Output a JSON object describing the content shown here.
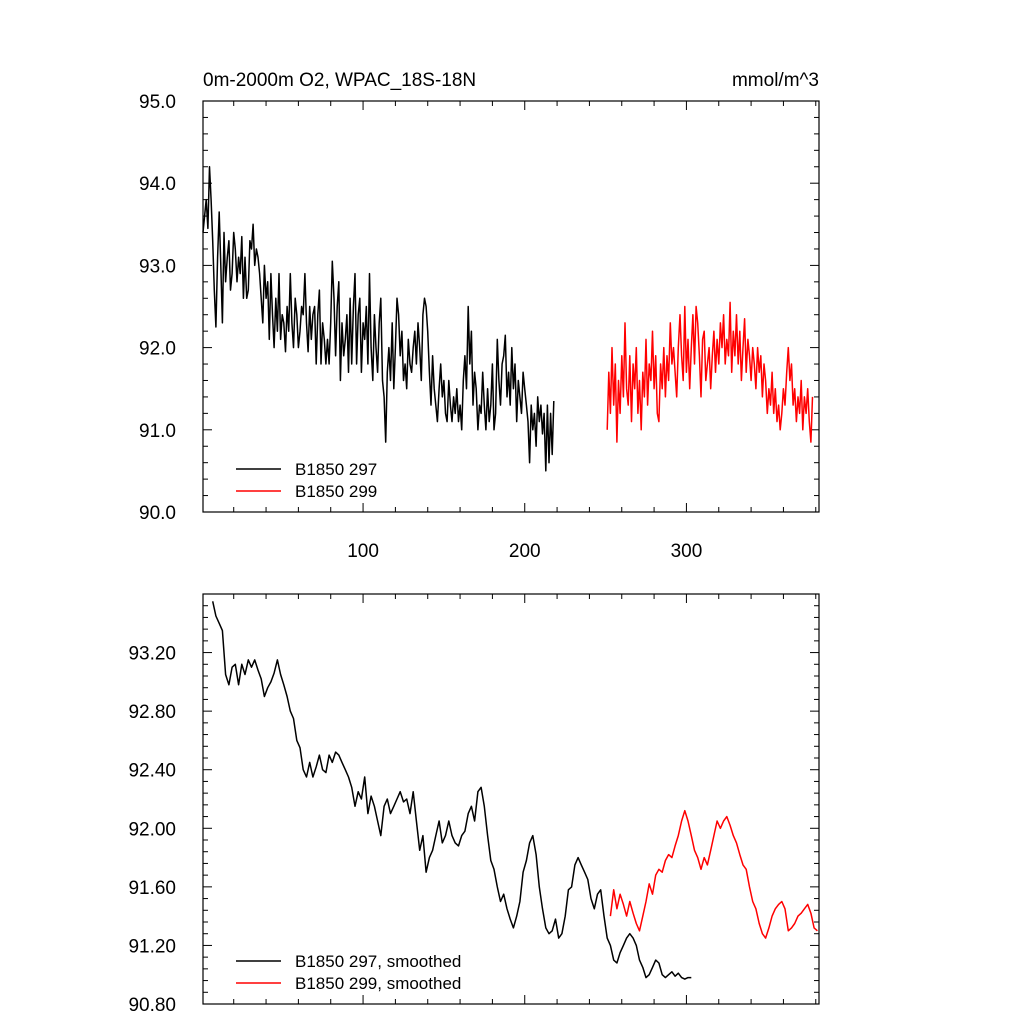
{
  "chart_data": [
    {
      "type": "line",
      "title": "0m-2000m O2, WPAC_18S-18N",
      "units": "mmol/m^3",
      "xlabel": "",
      "ylabel": "",
      "xlim": [
        1,
        382
      ],
      "ylim": [
        90.0,
        95.0
      ],
      "x_ticks": [
        100,
        200,
        300
      ],
      "x_tick_labels": [
        "100",
        "200",
        "300"
      ],
      "y_ticks": [
        90.0,
        91.0,
        92.0,
        93.0,
        94.0,
        95.0
      ],
      "y_tick_labels": [
        "90.0",
        "91.0",
        "92.0",
        "93.0",
        "94.0",
        "95.0"
      ],
      "grid": false,
      "legend_position": "bottom-left",
      "series": [
        {
          "name": "B1850 297",
          "color": "#000000",
          "x_start": 1,
          "values": [
            93.4,
            93.6,
            93.8,
            93.45,
            94.2,
            93.8,
            93.3,
            92.7,
            92.25,
            93.1,
            93.65,
            93.0,
            92.3,
            93.4,
            92.8,
            93.1,
            93.3,
            92.7,
            92.9,
            93.4,
            93.2,
            92.8,
            93.1,
            92.9,
            93.35,
            92.6,
            93.1,
            92.6,
            92.7,
            93.3,
            93.2,
            93.5,
            93.0,
            93.2,
            93.1,
            92.9,
            92.6,
            92.3,
            93.0,
            92.6,
            92.8,
            92.1,
            92.9,
            92.4,
            92.0,
            92.6,
            92.2,
            92.9,
            92.1,
            92.4,
            92.3,
            91.95,
            92.5,
            92.2,
            92.9,
            92.3,
            92.0,
            92.6,
            92.4,
            92.0,
            92.2,
            92.5,
            92.4,
            92.9,
            92.3,
            91.95,
            92.5,
            92.1,
            92.4,
            92.5,
            91.8,
            92.4,
            92.7,
            91.8,
            92.3,
            92.1,
            91.8,
            92.1,
            91.8,
            92.3,
            93.05,
            92.6,
            91.9,
            92.5,
            92.8,
            91.6,
            92.3,
            91.9,
            92.1,
            92.4,
            91.7,
            92.6,
            91.8,
            92.5,
            92.9,
            91.8,
            92.4,
            92.6,
            91.7,
            92.3,
            92.1,
            92.5,
            91.8,
            92.9,
            92.0,
            91.6,
            92.4,
            92.0,
            91.7,
            92.3,
            92.6,
            91.6,
            91.4,
            90.85,
            91.7,
            92.0,
            91.6,
            92.3,
            91.5,
            92.0,
            92.6,
            92.4,
            91.9,
            92.2,
            91.6,
            91.8,
            91.5,
            92.1,
            91.8,
            91.7,
            92.0,
            92.2,
            91.8,
            92.3,
            92.0,
            91.6,
            92.4,
            92.6,
            92.5,
            92.2,
            91.7,
            91.3,
            91.9,
            91.5,
            91.3,
            91.1,
            91.5,
            91.8,
            91.4,
            91.6,
            91.2,
            91.1,
            91.6,
            91.3,
            91.1,
            91.4,
            91.2,
            91.5,
            91.1,
            91.3,
            91.0,
            91.6,
            91.9,
            91.5,
            92.5,
            91.8,
            92.2,
            91.3,
            91.7,
            91.5,
            91.0,
            91.3,
            91.2,
            91.7,
            91.3,
            91.0,
            91.5,
            91.1,
            91.3,
            91.8,
            91.0,
            91.2,
            92.1,
            91.6,
            91.3,
            91.8,
            91.9,
            92.15,
            91.4,
            91.7,
            91.3,
            92.0,
            91.5,
            91.8,
            91.1,
            91.6,
            91.4,
            91.2,
            91.7,
            91.5,
            91.3,
            91.1,
            90.6,
            91.3,
            91.0,
            91.2,
            90.8,
            91.4,
            91.1,
            91.3,
            90.95,
            91.2,
            90.5,
            91.3,
            90.6,
            91.2,
            90.7,
            91.35
          ]
        },
        {
          "name": "B1850 299",
          "color": "#ff0000",
          "x_start": 251,
          "values": [
            91.0,
            91.7,
            91.2,
            92.0,
            91.3,
            91.8,
            90.85,
            91.6,
            91.2,
            91.9,
            91.4,
            92.3,
            91.5,
            91.3,
            91.9,
            91.1,
            91.8,
            91.5,
            92.0,
            91.2,
            91.6,
            91.0,
            91.7,
            91.4,
            92.1,
            91.3,
            91.8,
            91.6,
            92.2,
            91.5,
            91.9,
            91.2,
            91.1,
            91.8,
            91.5,
            92.0,
            91.4,
            91.9,
            91.6,
            92.3,
            91.8,
            92.0,
            91.7,
            91.4,
            92.0,
            92.4,
            91.9,
            91.6,
            92.5,
            91.7,
            92.1,
            91.5,
            92.0,
            92.4,
            91.8,
            92.5,
            92.3,
            91.9,
            91.4,
            92.1,
            92.2,
            91.6,
            91.8,
            92.0,
            91.5,
            91.9,
            92.2,
            91.7,
            92.1,
            91.8,
            92.3,
            92.0,
            92.4,
            91.8,
            92.1,
            91.9,
            92.55,
            91.7,
            92.2,
            91.9,
            92.4,
            91.8,
            92.2,
            91.6,
            92.0,
            92.35,
            91.7,
            92.1,
            91.9,
            91.6,
            92.0,
            91.8,
            91.5,
            92.0,
            91.7,
            91.9,
            91.4,
            91.8,
            91.6,
            91.2,
            91.5,
            91.3,
            91.7,
            91.2,
            91.5,
            91.1,
            91.3,
            91.0,
            91.2,
            91.5,
            91.3,
            91.7,
            92.0,
            91.6,
            91.8,
            91.3,
            91.5,
            91.1,
            91.4,
            91.2,
            91.6,
            91.0,
            91.4,
            91.2,
            91.5,
            91.1,
            90.85,
            91.4
          ]
        }
      ]
    },
    {
      "type": "line",
      "title": "",
      "xlabel": "",
      "ylabel": "",
      "xlim": [
        1,
        382
      ],
      "ylim": [
        90.8,
        93.6
      ],
      "x_ticks": [
        100,
        200,
        300
      ],
      "y_ticks": [
        90.8,
        91.2,
        91.6,
        92.0,
        92.4,
        92.8,
        93.2
      ],
      "y_tick_labels": [
        "90.80",
        "91.20",
        "91.60",
        "92.00",
        "92.40",
        "92.80",
        "93.20"
      ],
      "grid": false,
      "legend_position": "bottom-left",
      "series": [
        {
          "name": "B1850 297, smoothed",
          "color": "#000000",
          "x": [
            7,
            9,
            11,
            13,
            15,
            17,
            19,
            21,
            23,
            25,
            27,
            29,
            31,
            33,
            35,
            37,
            39,
            41,
            43,
            45,
            47,
            49,
            51,
            53,
            55,
            57,
            59,
            61,
            63,
            65,
            67,
            69,
            71,
            73,
            75,
            77,
            79,
            81,
            83,
            85,
            87,
            89,
            91,
            93,
            95,
            97,
            99,
            101,
            103,
            105,
            107,
            109,
            111,
            113,
            115,
            117,
            119,
            121,
            123,
            125,
            127,
            129,
            131,
            133,
            135,
            137,
            139,
            141,
            143,
            145,
            147,
            149,
            151,
            153,
            155,
            157,
            159,
            161,
            163,
            165,
            167,
            169,
            171,
            173,
            175,
            177,
            179,
            181,
            183,
            185,
            187,
            189,
            191,
            193,
            195,
            197,
            199,
            201,
            203,
            205,
            207,
            209,
            211,
            213,
            215,
            217,
            219,
            221,
            223,
            225,
            227,
            229,
            231,
            233,
            235,
            237,
            239,
            241,
            243,
            245,
            247,
            249,
            251,
            253,
            255,
            257,
            259,
            261,
            263,
            265,
            267,
            269,
            271,
            273,
            275,
            277,
            279,
            281,
            283,
            285,
            287,
            289,
            291,
            293,
            295,
            297,
            299,
            301,
            303
          ],
          "values": [
            93.55,
            93.45,
            93.4,
            93.35,
            93.05,
            92.98,
            93.1,
            93.12,
            92.98,
            93.12,
            93.05,
            93.15,
            93.1,
            93.15,
            93.08,
            93.02,
            92.9,
            92.96,
            93.0,
            93.06,
            93.15,
            93.05,
            92.98,
            92.9,
            92.8,
            92.75,
            92.6,
            92.55,
            92.4,
            92.35,
            92.45,
            92.35,
            92.42,
            92.5,
            92.4,
            92.38,
            92.5,
            92.45,
            92.52,
            92.5,
            92.45,
            92.4,
            92.35,
            92.28,
            92.15,
            92.25,
            92.2,
            92.35,
            92.1,
            92.22,
            92.15,
            92.05,
            91.95,
            92.15,
            92.2,
            92.1,
            92.15,
            92.2,
            92.25,
            92.18,
            92.2,
            92.1,
            92.25,
            92.05,
            91.85,
            91.95,
            91.7,
            91.8,
            91.85,
            91.95,
            92.05,
            91.9,
            91.95,
            92.05,
            91.95,
            91.9,
            91.88,
            91.95,
            91.98,
            92.1,
            92.15,
            92.05,
            92.25,
            92.28,
            92.15,
            91.95,
            91.78,
            91.72,
            91.6,
            91.5,
            91.55,
            91.45,
            91.38,
            91.32,
            91.4,
            91.5,
            91.7,
            91.78,
            91.9,
            91.95,
            91.82,
            91.6,
            91.45,
            91.32,
            91.28,
            91.3,
            91.38,
            91.25,
            91.28,
            91.4,
            91.58,
            91.6,
            91.75,
            91.8,
            91.75,
            91.7,
            91.65,
            91.52,
            91.45,
            91.55,
            91.58,
            91.4,
            91.25,
            91.2,
            91.1,
            91.08,
            91.15,
            91.2,
            91.25,
            91.28,
            91.25,
            91.2,
            91.1,
            91.05,
            90.98,
            91.0,
            91.05,
            91.1,
            91.08,
            91.0,
            90.98,
            91.0,
            91.02,
            90.99,
            91.01,
            90.98,
            90.97,
            90.98,
            90.98
          ]
        },
        {
          "name": "B1850 299, smoothed",
          "color": "#ff0000",
          "x": [
            253,
            255,
            257,
            259,
            261,
            263,
            265,
            267,
            269,
            271,
            273,
            275,
            277,
            279,
            281,
            283,
            285,
            287,
            289,
            291,
            293,
            295,
            297,
            299,
            301,
            303,
            305,
            307,
            309,
            311,
            313,
            315,
            317,
            319,
            321,
            323,
            325,
            327,
            329,
            331,
            333,
            335,
            337,
            339,
            341,
            343,
            345,
            347,
            349,
            351,
            353,
            355,
            357,
            359,
            361,
            363,
            365,
            367,
            369,
            371,
            373,
            375,
            377,
            379,
            381
          ],
          "values": [
            91.4,
            91.58,
            91.45,
            91.55,
            91.48,
            91.4,
            91.5,
            91.42,
            91.35,
            91.3,
            91.4,
            91.5,
            91.62,
            91.55,
            91.68,
            91.72,
            91.7,
            91.78,
            91.82,
            91.8,
            91.88,
            91.95,
            92.05,
            92.12,
            92.05,
            91.95,
            91.85,
            91.8,
            91.72,
            91.8,
            91.75,
            91.85,
            91.95,
            92.05,
            92.0,
            92.05,
            92.08,
            92.02,
            91.95,
            91.9,
            91.82,
            91.75,
            91.72,
            91.6,
            91.5,
            91.45,
            91.35,
            91.28,
            91.25,
            91.32,
            91.4,
            91.45,
            91.48,
            91.5,
            91.45,
            91.3,
            91.32,
            91.35,
            91.4,
            91.42,
            91.45,
            91.48,
            91.42,
            91.32,
            91.3
          ]
        }
      ]
    }
  ]
}
